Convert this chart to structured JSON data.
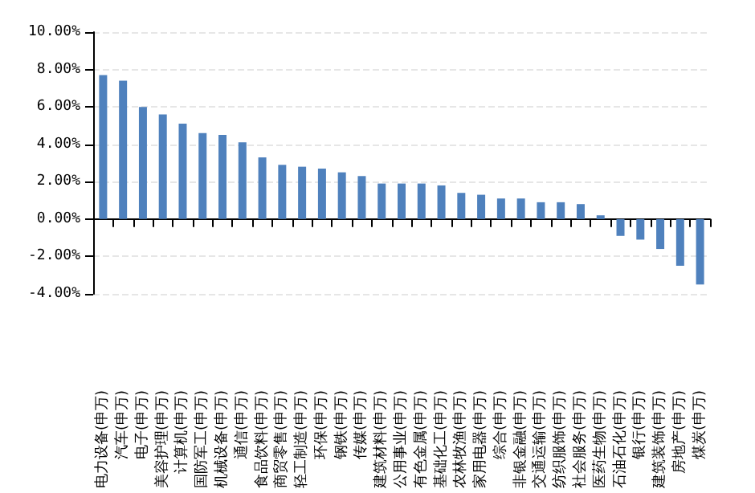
{
  "chart_data": {
    "type": "bar",
    "categories": [
      "电力设备(申万)",
      "汽车(申万)",
      "电子(申万)",
      "美容护理(申万)",
      "计算机(申万)",
      "国防军工(申万)",
      "机械设备(申万)",
      "通信(申万)",
      "食品饮料(申万)",
      "商贸零售(申万)",
      "轻工制造(申万)",
      "环保(申万)",
      "钢铁(申万)",
      "传媒(申万)",
      "建筑材料(申万)",
      "公用事业(申万)",
      "有色金属(申万)",
      "基础化工(申万)",
      "农林牧渔(申万)",
      "家用电器(申万)",
      "综合(申万)",
      "非银金融(申万)",
      "交通运输(申万)",
      "纺织服饰(申万)",
      "社会服务(申万)",
      "医药生物(申万)",
      "石油石化(申万)",
      "银行(申万)",
      "建筑装饰(申万)",
      "房地产(申万)",
      "煤炭(申万)"
    ],
    "values": [
      7.7,
      7.4,
      6.0,
      5.6,
      5.1,
      4.6,
      4.5,
      4.1,
      3.3,
      2.9,
      2.8,
      2.7,
      2.5,
      2.3,
      1.9,
      1.9,
      1.9,
      1.8,
      1.4,
      1.3,
      1.1,
      1.1,
      0.9,
      0.9,
      0.8,
      0.2,
      -0.9,
      -1.1,
      -1.6,
      -2.5,
      -3.5
    ],
    "color": "#4f81bd",
    "ylim": [
      -4,
      10
    ],
    "yticks": [
      {
        "value": -4,
        "label": "-4.00%"
      },
      {
        "value": -2,
        "label": "-2.00%"
      },
      {
        "value": 0,
        "label": "0.00%"
      },
      {
        "value": 2,
        "label": "2.00%"
      },
      {
        "value": 4,
        "label": "4.00%"
      },
      {
        "value": 6,
        "label": "6.00%"
      },
      {
        "value": 8,
        "label": "8.00%"
      },
      {
        "value": 10,
        "label": "10.00%"
      }
    ],
    "grid": "y"
  }
}
